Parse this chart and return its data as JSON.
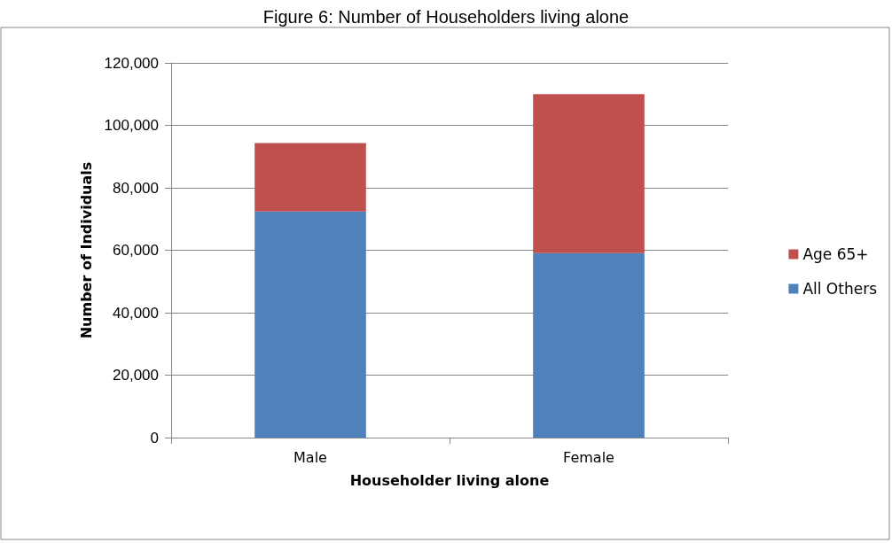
{
  "chart_data": {
    "type": "bar",
    "title": "Figure 6: Number of Householders living alone",
    "xlabel": "Householder living alone",
    "ylabel": "Number of Individuals",
    "categories": [
      "Male",
      "Female"
    ],
    "series": [
      {
        "name": "All Others",
        "color": "#4f81bd",
        "values": [
          72400,
          59100
        ]
      },
      {
        "name": "Age 65+",
        "color": "#c0504d",
        "values": [
          21900,
          50900
        ]
      }
    ],
    "stacked": true,
    "ylim": [
      0,
      120000
    ],
    "yticks": [
      0,
      {
        "value": 20000,
        "label": "20,000"
      },
      {
        "value": 40000,
        "label": "40,000"
      },
      {
        "value": 60000,
        "label": "60,000"
      },
      {
        "value": 80000,
        "label": "80,000"
      },
      {
        "value": 100000,
        "label": "100,000"
      },
      {
        "value": 120000,
        "label": "120,000"
      }
    ],
    "grid": "y",
    "legend": "right"
  }
}
